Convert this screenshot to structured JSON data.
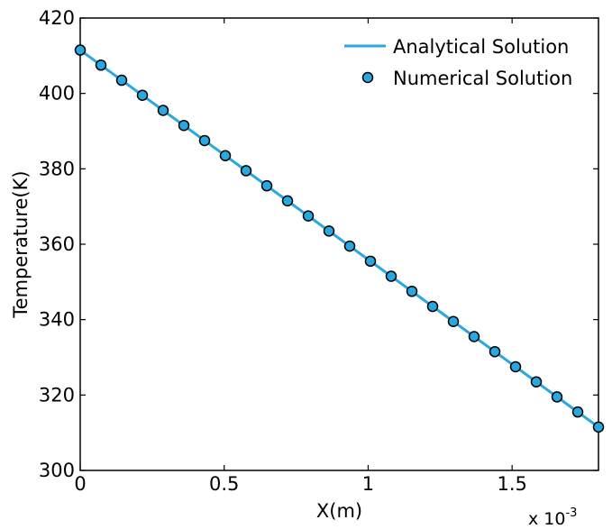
{
  "chart_data": {
    "type": "line",
    "title": "",
    "xlabel": "X(m)",
    "ylabel": "Temperature(K)",
    "x_multiplier": "x 10",
    "x_multiplier_exp": "-3",
    "xlim": [
      0,
      1.8
    ],
    "ylim": [
      300,
      420
    ],
    "x_ticks": [
      0,
      0.5,
      1,
      1.5
    ],
    "x_tick_labels": [
      "0",
      "0.5",
      "1",
      "1.5"
    ],
    "y_ticks": [
      300,
      320,
      340,
      360,
      380,
      400,
      420
    ],
    "y_tick_labels": [
      "300",
      "320",
      "340",
      "360",
      "380",
      "400",
      "420"
    ],
    "grid": false,
    "legend_position": "top-right",
    "series": [
      {
        "name": "Analytical Solution",
        "style": "line",
        "color": "#29a8e0",
        "x": [
          0,
          1.8
        ],
        "y": [
          411.5,
          311.5
        ]
      },
      {
        "name": "Numerical Solution",
        "style": "markers",
        "color": "#29a8e0",
        "edge_color": "#000000",
        "x": [
          0,
          0.072,
          0.144,
          0.216,
          0.288,
          0.36,
          0.432,
          0.504,
          0.576,
          0.648,
          0.72,
          0.792,
          0.864,
          0.936,
          1.008,
          1.08,
          1.152,
          1.224,
          1.296,
          1.368,
          1.44,
          1.512,
          1.584,
          1.656,
          1.728,
          1.8
        ],
        "y": [
          411.5,
          407.5,
          403.5,
          399.5,
          395.5,
          391.5,
          387.5,
          383.5,
          379.5,
          375.5,
          371.5,
          367.5,
          363.5,
          359.5,
          355.5,
          351.5,
          347.5,
          343.5,
          339.5,
          335.5,
          331.5,
          327.5,
          323.5,
          319.5,
          315.5,
          311.5
        ]
      }
    ]
  }
}
